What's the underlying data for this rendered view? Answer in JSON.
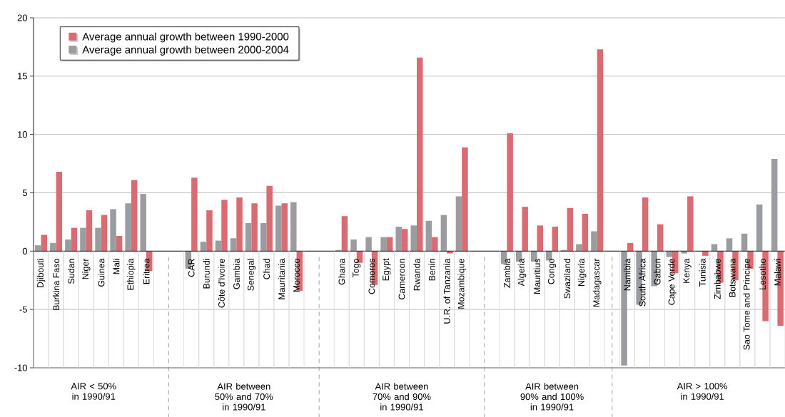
{
  "chart_data": {
    "type": "bar",
    "categories": [
      "Djibouti",
      "Burkina Faso",
      "Sudan",
      "Niger",
      "Guinea",
      "Mali",
      "Ethiopia",
      "Eritrea",
      null,
      null,
      "CAR",
      "Burundi",
      "Côte d'Ivoire",
      "Gambia",
      "Senegal",
      "Chad",
      "Mauritania",
      "Morocco",
      null,
      null,
      "Ghana",
      "Togo",
      "Comoros",
      "Egypt",
      "Cameroon",
      "Rwanda",
      "Benin",
      "U.R. of Tanzania",
      "Mozambique",
      null,
      null,
      "Zambia",
      "Algeria",
      "Mauritius",
      "Congo",
      "Swaziland",
      "Nigeria",
      "Madagascar",
      null,
      "Namibia",
      "South Africa",
      "Gabon",
      "Cape Verde",
      "Kenya",
      "Tunisia",
      "Zimbabwe",
      "Botswana",
      "Sao Tome and Principe",
      "Lesotho",
      "Malawi"
    ],
    "series": [
      {
        "name": "Average annual growth between 1990-2000",
        "color": "#d96b73",
        "values": [
          1.4,
          6.8,
          2.0,
          3.5,
          3.1,
          1.3,
          6.1,
          -1.7,
          null,
          null,
          6.3,
          3.5,
          4.4,
          4.6,
          4.1,
          5.6,
          4.1,
          -3.4,
          null,
          null,
          3.0,
          -1.0,
          -2.9,
          1.2,
          1.9,
          16.6,
          1.2,
          -0.2,
          8.9,
          null,
          null,
          10.1,
          3.8,
          2.2,
          2.1,
          3.7,
          3.2,
          17.3,
          null,
          0.7,
          4.6,
          2.3,
          -1.9,
          4.7,
          -0.4,
          -2.7,
          -2.5,
          -1.5,
          -6.0,
          -6.4
        ]
      },
      {
        "name": "Average annual growth between 2000-2004",
        "color": "#9a9c9f",
        "values": [
          0.5,
          0.7,
          1.0,
          2.0,
          2.0,
          3.6,
          4.1,
          4.9,
          null,
          null,
          -1.5,
          0.8,
          0.9,
          1.1,
          2.4,
          2.4,
          3.9,
          4.2,
          null,
          null,
          0.1,
          1.0,
          1.2,
          1.2,
          2.1,
          2.2,
          2.6,
          3.1,
          4.7,
          null,
          null,
          -1.1,
          -0.9,
          -0.9,
          -0.8,
          0.1,
          0.6,
          1.7,
          null,
          -9.8,
          -4.6,
          -3.0,
          -0.5,
          -0.2,
          0,
          0.6,
          1.1,
          1.5,
          4.0,
          7.9
        ]
      }
    ],
    "ylim": [
      -10,
      20
    ],
    "yticks": [
      -10,
      -5,
      0,
      5,
      10,
      15,
      20
    ],
    "grid": "y",
    "legend": "top left",
    "annotations": [
      "AIR < 50% in 1990/91",
      "AIR between 50% and 70% in 1990/91",
      "AIR between 70% and 90% in 1990/91",
      "AIR between 90% and 100% in 1990/91",
      "AIR > 100% in 1990/91"
    ]
  }
}
